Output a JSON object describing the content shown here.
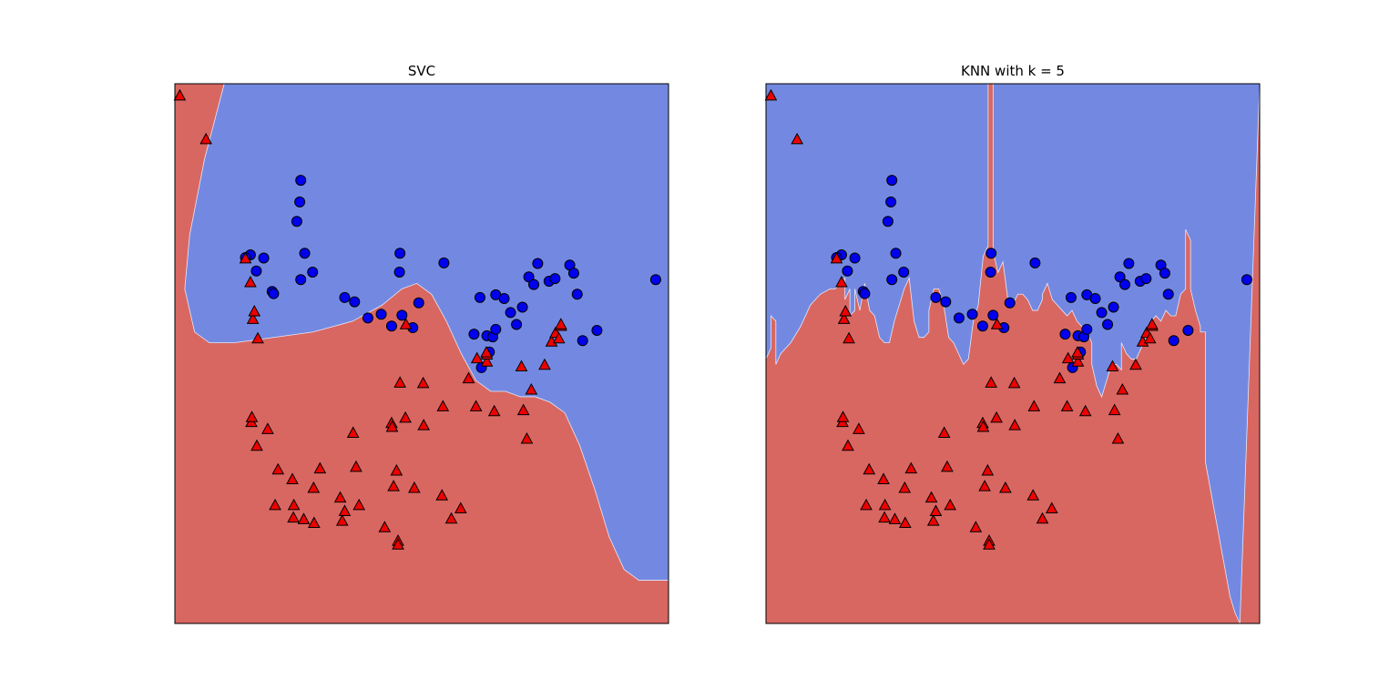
{
  "colors": {
    "class0_region": "#7389e1",
    "class1_region": "#d86762",
    "class0_marker": "#0000ee",
    "class1_marker": "#ee0000",
    "edge": "#000000"
  },
  "chart_data": [
    {
      "type": "scatter",
      "title": "SVC",
      "xlabel": "",
      "ylabel": "",
      "xlim": [
        0,
        100
      ],
      "ylim": [
        0,
        100
      ],
      "grid": false,
      "decision_boundary": [
        [
          10,
          100
        ],
        [
          6,
          86
        ],
        [
          3,
          72
        ],
        [
          2,
          62
        ],
        [
          4,
          54
        ],
        [
          7,
          52
        ],
        [
          12,
          52
        ],
        [
          20,
          53
        ],
        [
          28,
          54
        ],
        [
          36,
          56
        ],
        [
          42,
          59
        ],
        [
          46,
          62
        ],
        [
          49,
          63
        ],
        [
          52,
          61
        ],
        [
          55,
          56
        ],
        [
          58,
          50
        ],
        [
          61,
          45
        ],
        [
          64,
          43
        ],
        [
          67,
          43
        ],
        [
          70,
          42
        ],
        [
          73,
          42
        ],
        [
          76,
          41
        ],
        [
          79,
          39
        ],
        [
          82,
          33
        ],
        [
          85,
          25
        ],
        [
          88,
          16
        ],
        [
          91,
          10
        ],
        [
          94,
          8
        ],
        [
          100,
          8
        ]
      ],
      "series": [
        {
          "marker": "circle",
          "x": [
            25.5,
            25.3,
            24.7,
            18,
            15.3,
            14.3,
            16.5,
            19.7,
            20,
            25.5,
            27.9,
            26.3,
            34.4,
            36.4,
            39.1,
            41.8,
            45.5,
            45.6,
            49.4,
            43.9,
            46,
            48.2,
            54.5,
            61.8,
            60.6,
            65,
            70.4,
            69.2,
            66.7,
            63.2,
            62.1,
            63.7,
            64.4,
            65,
            68,
            71.7,
            72.7,
            73.5,
            75.8,
            77,
            80,
            80.8,
            81.5,
            82.6,
            85.5,
            97.4
          ],
          "y": [
            82.1,
            78.1,
            74.5,
            67.7,
            68.3,
            67.8,
            65.3,
            61.5,
            61.1,
            63.7,
            65.1,
            68.6,
            60.4,
            59.6,
            56.6,
            57.3,
            65.1,
            68.6,
            59.4,
            55.1,
            57.1,
            54.8,
            66.8,
            60.4,
            53.6,
            60.9,
            58.6,
            55.4,
            60.2,
            53.3,
            47.4,
            50.3,
            53.1,
            54.5,
            57.6,
            64.2,
            62.8,
            66.7,
            63.4,
            63.9,
            66.4,
            64.9,
            61,
            52.4,
            54.3,
            63.7
          ]
        },
        {
          "marker": "triangle",
          "x": [
            1,
            6.3,
            14.3,
            15.3,
            15.8,
            16.1,
            16.8,
            15.5,
            15.6,
            16.6,
            18.8,
            20.9,
            20.3,
            24,
            28.2,
            28.1,
            29.4,
            36.1,
            36.7,
            34.4,
            37.3,
            45.2,
            45.2,
            44.3,
            44.9,
            48.5,
            45.6,
            46.8,
            50.3,
            43.9,
            46.7,
            54.1,
            56,
            57.9,
            59.5,
            61,
            63.2,
            63.2,
            64.7,
            70.2,
            70.6,
            71.3,
            72.2,
            74.9,
            76.3,
            77.1,
            78.2,
            78.2,
            77.8,
            63.1,
            61.2,
            54.3,
            50.4,
            44,
            42.5,
            26.1,
            24.1,
            23.8,
            33.9,
            33.5
          ],
          "y": [
            97.8,
            89.7,
            67.6,
            63.2,
            56.4,
            57.8,
            52.8,
            37.3,
            38.2,
            32.9,
            36,
            28.5,
            21.9,
            19.6,
            18.6,
            25.1,
            28.7,
            35.3,
            29,
            20.8,
            21.9,
            15.3,
            14.6,
            25.4,
            28.3,
            25.1,
            44.6,
            55.4,
            44.5,
            37.1,
            38.1,
            23.7,
            19.4,
            21.3,
            45.4,
            40.2,
            48.5,
            49.8,
            39.3,
            47.6,
            39.5,
            34.2,
            43.3,
            47.9,
            52.2,
            53.8,
            55.1,
            55.4,
            52.8,
            50.2,
            49.1,
            40.2,
            36.7,
            36.4,
            17.8,
            19.3,
            21.9,
            26.7,
            19,
            23.3
          ]
        }
      ]
    },
    {
      "type": "scatter",
      "title": "KNN with k = 5",
      "xlabel": "",
      "ylabel": "",
      "xlim": [
        0,
        100
      ],
      "ylim": [
        0,
        100
      ],
      "grid": false,
      "decision_boundary": [
        [
          0,
          49
        ],
        [
          1,
          51
        ],
        [
          1,
          57
        ],
        [
          2,
          56
        ],
        [
          2,
          48
        ],
        [
          3,
          50
        ],
        [
          5,
          52
        ],
        [
          7,
          55
        ],
        [
          9,
          59
        ],
        [
          11,
          61
        ],
        [
          13,
          62
        ],
        [
          14,
          62
        ],
        [
          15,
          63
        ],
        [
          16,
          64
        ],
        [
          16,
          60
        ],
        [
          17,
          62
        ],
        [
          17,
          57
        ],
        [
          18,
          58
        ],
        [
          18,
          62
        ],
        [
          19,
          58
        ],
        [
          20,
          63
        ],
        [
          21,
          58
        ],
        [
          22,
          57
        ],
        [
          23,
          53
        ],
        [
          24,
          52
        ],
        [
          25,
          52
        ],
        [
          26,
          56
        ],
        [
          28,
          62
        ],
        [
          29,
          64
        ],
        [
          30,
          56
        ],
        [
          31,
          53
        ],
        [
          32,
          53
        ],
        [
          33,
          54
        ],
        [
          33,
          58
        ],
        [
          34,
          62
        ],
        [
          35,
          62
        ],
        [
          36,
          59
        ],
        [
          37,
          53
        ],
        [
          38,
          52
        ],
        [
          39,
          50
        ],
        [
          40,
          48
        ],
        [
          41,
          49
        ],
        [
          42,
          56
        ],
        [
          43,
          59
        ],
        [
          44,
          68
        ],
        [
          45,
          70
        ],
        [
          45,
          100
        ],
        [
          46,
          100
        ],
        [
          46,
          69
        ],
        [
          47,
          65
        ],
        [
          48,
          67
        ],
        [
          49,
          60
        ],
        [
          50,
          59
        ],
        [
          51,
          61
        ],
        [
          52,
          61
        ],
        [
          53,
          60
        ],
        [
          54,
          58
        ],
        [
          55,
          58
        ],
        [
          56,
          60
        ],
        [
          56,
          61
        ],
        [
          57,
          63
        ],
        [
          58,
          60
        ],
        [
          59,
          59
        ],
        [
          60,
          58
        ],
        [
          61,
          57
        ],
        [
          62,
          58
        ],
        [
          63,
          56
        ],
        [
          64,
          55
        ],
        [
          65,
          54
        ],
        [
          66,
          52
        ],
        [
          66,
          48
        ],
        [
          67,
          44
        ],
        [
          68,
          42
        ],
        [
          69,
          45
        ],
        [
          70,
          48
        ],
        [
          71,
          48
        ],
        [
          72,
          47
        ],
        [
          72,
          52
        ],
        [
          73,
          50
        ],
        [
          74,
          49
        ],
        [
          75,
          49
        ],
        [
          76,
          51
        ],
        [
          77,
          53
        ],
        [
          78,
          55
        ],
        [
          78,
          56
        ],
        [
          79,
          57
        ],
        [
          80,
          56
        ],
        [
          81,
          58
        ],
        [
          82,
          57
        ],
        [
          83,
          57
        ],
        [
          84,
          61
        ],
        [
          85,
          62
        ],
        [
          85,
          73
        ],
        [
          86,
          71
        ],
        [
          86,
          62
        ],
        [
          87,
          58
        ],
        [
          88,
          55
        ],
        [
          88,
          54
        ],
        [
          89,
          54
        ],
        [
          89,
          45
        ],
        [
          89,
          30
        ],
        [
          90,
          25
        ],
        [
          91,
          20
        ],
        [
          92,
          15
        ],
        [
          93,
          10
        ],
        [
          94,
          5
        ],
        [
          95,
          2
        ],
        [
          96,
          0
        ]
      ],
      "series": [
        {
          "marker": "circle",
          "x": [
            25.5,
            25.3,
            24.7,
            18,
            15.3,
            14.3,
            16.5,
            19.7,
            20,
            25.5,
            27.9,
            26.3,
            34.4,
            36.4,
            39.1,
            41.8,
            45.5,
            45.6,
            49.4,
            43.9,
            46,
            48.2,
            54.5,
            61.8,
            60.6,
            65,
            70.4,
            69.2,
            66.7,
            63.2,
            62.1,
            63.7,
            64.4,
            65,
            68,
            71.7,
            72.7,
            73.5,
            75.8,
            77,
            80,
            80.8,
            81.5,
            82.6,
            85.5,
            97.4
          ],
          "y": [
            82.1,
            78.1,
            74.5,
            67.7,
            68.3,
            67.8,
            65.3,
            61.5,
            61.1,
            63.7,
            65.1,
            68.6,
            60.4,
            59.6,
            56.6,
            57.3,
            65.1,
            68.6,
            59.4,
            55.1,
            57.1,
            54.8,
            66.8,
            60.4,
            53.6,
            60.9,
            58.6,
            55.4,
            60.2,
            53.3,
            47.4,
            50.3,
            53.1,
            54.5,
            57.6,
            64.2,
            62.8,
            66.7,
            63.4,
            63.9,
            66.4,
            64.9,
            61,
            52.4,
            54.3,
            63.7
          ]
        },
        {
          "marker": "triangle",
          "x": [
            1,
            6.3,
            14.3,
            15.3,
            15.8,
            16.1,
            16.8,
            15.5,
            15.6,
            16.6,
            18.8,
            20.9,
            20.3,
            24,
            28.2,
            28.1,
            29.4,
            36.1,
            36.7,
            34.4,
            37.3,
            45.2,
            45.2,
            44.3,
            44.9,
            48.5,
            45.6,
            46.8,
            50.3,
            43.9,
            46.7,
            54.1,
            56,
            57.9,
            59.5,
            61,
            63.2,
            63.2,
            64.7,
            70.2,
            70.6,
            71.3,
            72.2,
            74.9,
            76.3,
            77.1,
            78.2,
            78.2,
            77.8,
            63.1,
            61.2,
            54.3,
            50.4,
            44,
            42.5,
            26.1,
            24.1,
            23.8,
            33.9,
            33.5
          ],
          "y": [
            97.8,
            89.7,
            67.6,
            63.2,
            56.4,
            57.8,
            52.8,
            37.3,
            38.2,
            32.9,
            36,
            28.5,
            21.9,
            19.6,
            18.6,
            25.1,
            28.7,
            35.3,
            29,
            20.8,
            21.9,
            15.3,
            14.6,
            25.4,
            28.3,
            25.1,
            44.6,
            55.4,
            44.5,
            37.1,
            38.1,
            23.7,
            19.4,
            21.3,
            45.4,
            40.2,
            48.5,
            49.8,
            39.3,
            47.6,
            39.5,
            34.2,
            43.3,
            47.9,
            52.2,
            53.8,
            55.1,
            55.4,
            52.8,
            50.2,
            49.1,
            40.2,
            36.7,
            36.4,
            17.8,
            19.3,
            21.9,
            26.7,
            19,
            23.3
          ]
        }
      ]
    }
  ]
}
